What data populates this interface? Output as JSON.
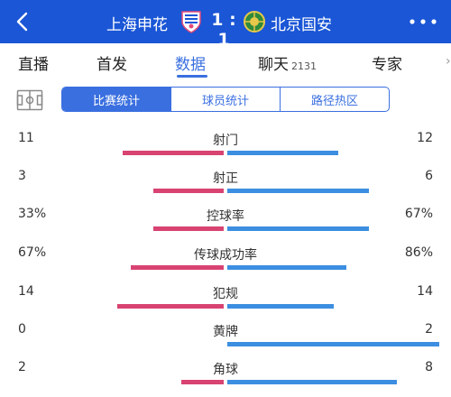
{
  "header": {
    "home_team": "上海申花",
    "score": "1 : 1",
    "away_team": "北京国安",
    "accent": "#1a56d6"
  },
  "tabs": [
    {
      "label": "直播",
      "active": false
    },
    {
      "label": "首发",
      "active": false
    },
    {
      "label": "数据",
      "active": true
    },
    {
      "label": "聊天",
      "count": "2131",
      "active": false
    },
    {
      "label": "专家",
      "active": false
    }
  ],
  "segments": [
    {
      "label": "比赛统计",
      "active": true
    },
    {
      "label": "球员统计",
      "active": false
    },
    {
      "label": "路径热区",
      "active": false
    }
  ],
  "colors": {
    "home_bar": "#d84372",
    "away_bar": "#3c8ee0",
    "active_tab": "#3a6fe0"
  },
  "stats": [
    {
      "label": "射门",
      "home": "11",
      "away": "12",
      "home_value": 11,
      "away_value": 12
    },
    {
      "label": "射正",
      "home": "3",
      "away": "6",
      "home_value": 3,
      "away_value": 6
    },
    {
      "label": "控球率",
      "home": "33%",
      "away": "67%",
      "home_value": 33,
      "away_value": 67
    },
    {
      "label": "传球成功率",
      "home": "67%",
      "away": "86%",
      "home_value": 67,
      "away_value": 86
    },
    {
      "label": "犯规",
      "home": "14",
      "away": "14",
      "home_value": 14,
      "away_value": 14
    },
    {
      "label": "黄牌",
      "home": "0",
      "away": "2",
      "home_value": 0,
      "away_value": 2
    },
    {
      "label": "角球",
      "home": "2",
      "away": "8",
      "home_value": 2,
      "away_value": 8
    }
  ]
}
